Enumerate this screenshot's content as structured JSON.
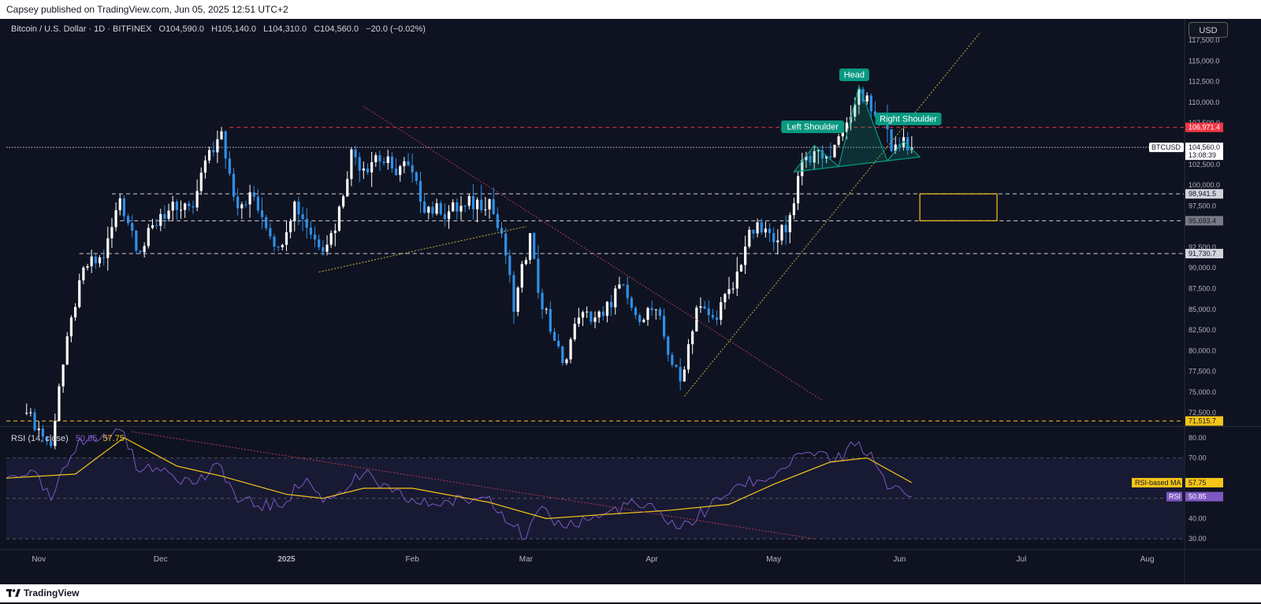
{
  "header": {
    "published": "Capsey published on TradingView.com, Jun 05, 2025 12:51 UTC+2"
  },
  "footer": {
    "brand": "TradingView"
  },
  "symbol": {
    "title": "Bitcoin / U.S. Dollar · 1D · BITFINEX",
    "open": "O104,590.0",
    "high": "H105,140.0",
    "low": "L104,310.0",
    "close": "C104,560.0",
    "change": "−20.0 (−0.02%)"
  },
  "currency_button": "USD",
  "rsi_header": {
    "title": "RSI (14, close)",
    "rsi_value": "50.85",
    "ma_value": "57.75"
  },
  "price_axis": {
    "ticks": [
      "117,500.0",
      "115,000.0",
      "112,500.0",
      "110,000.0",
      "107,500.0",
      "102,500.0",
      "100,000.0",
      "97,500.0",
      "92,500.0",
      "90,000.0",
      "87,500.0",
      "85,000.0",
      "82,500.0",
      "80,000.0",
      "77,500.0",
      "75,000.0",
      "72,500.0"
    ]
  },
  "price_labels": {
    "resistance": "106,971.4",
    "current_symbol": "BTCUSD",
    "current_price": "104,560.0",
    "countdown": "13:08:39",
    "level_98": "98,941.5",
    "level_95": "95,693.4",
    "level_91": "91,730.7",
    "level_71": "71,515.7"
  },
  "rsi_axis": {
    "ticks": [
      "80.00",
      "70.00",
      "40.00",
      "30.00"
    ],
    "ma_label": "RSI-based MA",
    "ma_value": "57.75",
    "rsi_label": "RSI",
    "rsi_value": "50.85"
  },
  "time_axis": {
    "labels": [
      "Nov",
      "Dec",
      "2025",
      "Feb",
      "Mar",
      "Apr",
      "May",
      "Jun",
      "Jul",
      "Aug"
    ]
  },
  "annotations": {
    "left_shoulder": "Left Shoulder",
    "head": "Head",
    "right_shoulder": "Right Shoulder"
  },
  "colors": {
    "background": "#0f1321",
    "up_candle": "#ffffff",
    "down_candle": "#2f8fe8",
    "pattern": "#089981",
    "resistance": "#f23645",
    "rsi_line": "#7e57c2",
    "rsi_ma": "#f5c518",
    "zone": "#f5c518"
  },
  "chart_data": [
    {
      "type": "candlestick",
      "title": "Bitcoin / U.S. Dollar · 1D · BITFINEX",
      "ylim": [
        71000,
        119500
      ],
      "x_range": [
        "2024-10-24",
        "2025-08-10"
      ],
      "horizontal_levels": [
        {
          "value": 106971.4,
          "style": "dashed-red"
        },
        {
          "value": 104560.0,
          "style": "dotted-white"
        },
        {
          "value": 98941.5,
          "style": "dashed-white"
        },
        {
          "value": 95693.4,
          "style": "dashed-white"
        },
        {
          "value": 91730.7,
          "style": "dashed-white"
        },
        {
          "value": 71515.7,
          "style": "dashed-yellow"
        }
      ],
      "zone": {
        "from": "2025-06-06",
        "to": "2025-06-25",
        "low": 95693.4,
        "high": 98941.5
      },
      "anchor_closes": [
        [
          "2024-10-29",
          72500
        ],
        [
          "2024-11-04",
          68500
        ],
        [
          "2024-11-06",
          75700
        ],
        [
          "2024-11-11",
          88500
        ],
        [
          "2024-11-13",
          90200
        ],
        [
          "2024-11-17",
          91200
        ],
        [
          "2024-11-21",
          98400
        ],
        [
          "2024-11-26",
          91900
        ],
        [
          "2024-12-01",
          96500
        ],
        [
          "2024-12-05",
          97000
        ],
        [
          "2024-12-09",
          97300
        ],
        [
          "2024-12-11",
          101500
        ],
        [
          "2024-12-16",
          106500
        ],
        [
          "2024-12-20",
          97200
        ],
        [
          "2024-12-24",
          98600
        ],
        [
          "2024-12-30",
          92500
        ],
        [
          "2025-01-03",
          98000
        ],
        [
          "2025-01-09",
          92500
        ],
        [
          "2025-01-13",
          94500
        ],
        [
          "2025-01-17",
          104300
        ],
        [
          "2025-01-20",
          102000
        ],
        [
          "2025-01-23",
          103600
        ],
        [
          "2025-01-27",
          102000
        ],
        [
          "2025-01-31",
          102400
        ],
        [
          "2025-02-03",
          98000
        ],
        [
          "2025-02-08",
          96500
        ],
        [
          "2025-02-14",
          97500
        ],
        [
          "2025-02-20",
          98300
        ],
        [
          "2025-02-24",
          91500
        ],
        [
          "2025-02-26",
          84700
        ],
        [
          "2025-03-02",
          94200
        ],
        [
          "2025-03-04",
          87000
        ],
        [
          "2025-03-10",
          78500
        ],
        [
          "2025-03-14",
          84000
        ],
        [
          "2025-03-20",
          84200
        ],
        [
          "2025-03-24",
          88000
        ],
        [
          "2025-03-28",
          84300
        ],
        [
          "2025-04-02",
          85000
        ],
        [
          "2025-04-06",
          78300
        ],
        [
          "2025-04-08",
          76300
        ],
        [
          "2025-04-12",
          85200
        ],
        [
          "2025-04-16",
          84000
        ],
        [
          "2025-04-21",
          87500
        ],
        [
          "2025-04-25",
          94600
        ],
        [
          "2025-04-30",
          94200
        ],
        [
          "2025-05-04",
          94300
        ],
        [
          "2025-05-08",
          103000
        ],
        [
          "2025-05-11",
          104100
        ],
        [
          "2025-05-14",
          103500
        ],
        [
          "2025-05-18",
          106400
        ],
        [
          "2025-05-21",
          109700
        ],
        [
          "2025-05-22",
          111600
        ],
        [
          "2025-05-25",
          108900
        ],
        [
          "2025-05-28",
          107800
        ],
        [
          "2025-05-30",
          104100
        ],
        [
          "2025-06-02",
          105800
        ],
        [
          "2025-06-04",
          104560
        ]
      ],
      "trendlines": [
        {
          "from": [
            "2025-01-20",
            109500
          ],
          "to": [
            "2025-05-13",
            74000
          ]
        },
        {
          "from": [
            "2025-01-09",
            89500
          ],
          "to": [
            "2025-03-01",
            95000
          ]
        },
        {
          "from": [
            "2025-04-09",
            74500
          ],
          "to": [
            "2025-06-21",
            118500
          ]
        }
      ],
      "pattern": {
        "name": "head-and-shoulders",
        "left_shoulder": [
          "2025-05-11",
          104800
        ],
        "head": [
          "2025-05-22",
          112000
        ],
        "right_shoulder": [
          "2025-06-02",
          105300
        ],
        "neckline": [
          [
            "2025-05-06",
            101600
          ],
          [
            "2025-06-06",
            103400
          ]
        ]
      }
    },
    {
      "type": "line",
      "title": "RSI (14, close)",
      "ylim": [
        25,
        85
      ],
      "levels": [
        70,
        50,
        30
      ],
      "series": [
        {
          "name": "RSI",
          "points": [
            [
              "2024-10-24",
              60
            ],
            [
              "2024-10-30",
              64
            ],
            [
              "2024-11-04",
              49
            ],
            [
              "2024-11-11",
              80
            ],
            [
              "2024-11-15",
              78
            ],
            [
              "2024-11-21",
              84
            ],
            [
              "2024-11-26",
              63
            ],
            [
              "2024-12-02",
              65
            ],
            [
              "2024-12-09",
              57
            ],
            [
              "2024-12-16",
              66
            ],
            [
              "2024-12-20",
              48
            ],
            [
              "2024-12-30",
              46
            ],
            [
              "2025-01-06",
              60
            ],
            [
              "2025-01-10",
              48
            ],
            [
              "2025-01-20",
              62
            ],
            [
              "2025-01-27",
              53
            ],
            [
              "2025-02-03",
              47
            ],
            [
              "2025-02-14",
              49
            ],
            [
              "2025-02-20",
              51
            ],
            [
              "2025-02-26",
              36
            ],
            [
              "2025-03-01",
              30
            ],
            [
              "2025-03-04",
              44
            ],
            [
              "2025-03-10",
              36
            ],
            [
              "2025-03-20",
              42
            ],
            [
              "2025-03-26",
              47
            ],
            [
              "2025-04-02",
              44
            ],
            [
              "2025-04-08",
              35
            ],
            [
              "2025-04-15",
              45
            ],
            [
              "2025-04-22",
              57
            ],
            [
              "2025-04-30",
              60
            ],
            [
              "2025-05-08",
              72
            ],
            [
              "2025-05-12",
              73
            ],
            [
              "2025-05-16",
              68
            ],
            [
              "2025-05-22",
              78
            ],
            [
              "2025-05-26",
              67
            ],
            [
              "2025-05-30",
              55
            ],
            [
              "2025-06-04",
              50.85
            ]
          ]
        },
        {
          "name": "RSI-based MA",
          "points": [
            [
              "2024-10-24",
              60
            ],
            [
              "2024-11-10",
              62
            ],
            [
              "2024-11-22",
              80
            ],
            [
              "2024-12-05",
              66
            ],
            [
              "2024-12-16",
              61
            ],
            [
              "2025-01-01",
              52
            ],
            [
              "2025-01-10",
              50
            ],
            [
              "2025-01-20",
              55
            ],
            [
              "2025-02-01",
              55
            ],
            [
              "2025-02-20",
              48
            ],
            [
              "2025-03-06",
              40
            ],
            [
              "2025-03-20",
              42
            ],
            [
              "2025-04-05",
              44
            ],
            [
              "2025-04-20",
              47
            ],
            [
              "2025-05-01",
              57
            ],
            [
              "2025-05-15",
              68
            ],
            [
              "2025-05-24",
              70
            ],
            [
              "2025-06-04",
              57.75
            ]
          ]
        }
      ],
      "trendline": {
        "from": [
          "2024-11-24",
          83
        ],
        "to": [
          "2025-05-11",
          30
        ]
      }
    }
  ]
}
